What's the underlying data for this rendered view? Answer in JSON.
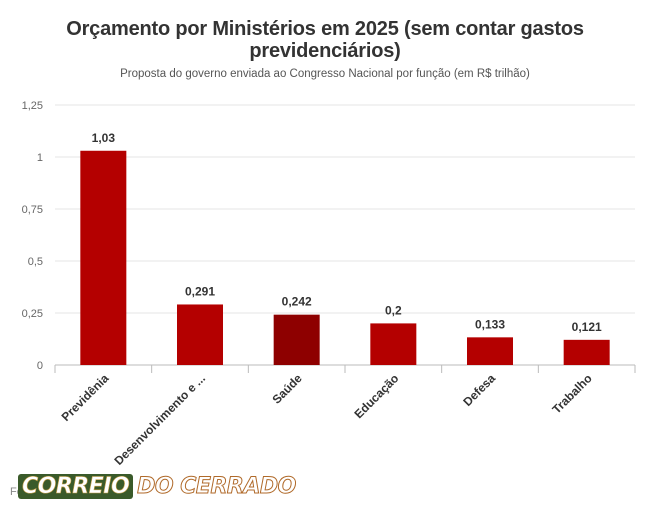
{
  "title": "Orçamento por Ministérios em 2025 (sem contar gastos previdenciários)",
  "subtitle": "Proposta do governo enviada ao Congresso Nacional por função (em R$ trilhão)",
  "source": "Fo",
  "watermark": {
    "part1": "CORREIO",
    "part2": "DO CERRADO",
    "text": "CORREIO DO CERRADO"
  },
  "colors": {
    "bar": "#b40000",
    "bar_highlight": "#8e0000",
    "grid": "#e6e6e6",
    "text": "#333333"
  },
  "chart_data": {
    "type": "bar",
    "title": "Orçamento por Ministérios em 2025 (sem contar gastos previdenciários)",
    "subtitle": "Proposta do governo enviada ao Congresso Nacional por função (em R$ trilhão)",
    "categories": [
      "Previdênia",
      "Desenvolvimento e ...",
      "Saúde",
      "Educação",
      "Defesa",
      "Trabalho"
    ],
    "values": [
      1.03,
      0.291,
      0.242,
      0.2,
      0.133,
      0.121
    ],
    "value_labels": [
      "1,03",
      "0,291",
      "0,242",
      "0,2",
      "0,133",
      "0,121"
    ],
    "yticks": [
      0,
      0.25,
      0.5,
      0.75,
      1,
      1.25
    ],
    "ytick_labels": [
      "0",
      "0,25",
      "0,5",
      "0,75",
      "1",
      "1,25"
    ],
    "ylim": [
      0,
      1.25
    ],
    "highlight_index": 2,
    "grid": true,
    "legend": "none"
  }
}
